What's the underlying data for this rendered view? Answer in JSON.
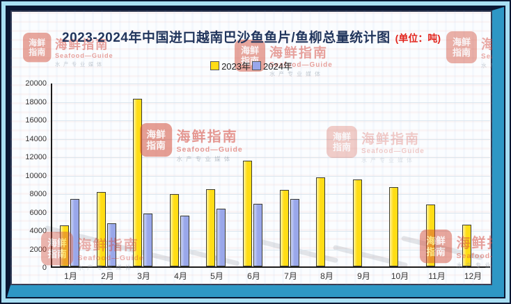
{
  "header": {
    "title": "2023-2024年中国进口越南巴沙鱼鱼片/鱼柳总量统计图",
    "unit_label": "(单位：吨)",
    "title_color": "#22355c",
    "unit_color": "#e2241c"
  },
  "legend": {
    "items": [
      {
        "label": "2023年",
        "color": "#ffdd15"
      },
      {
        "label": "2024年",
        "color": "#99a7ea"
      }
    ]
  },
  "watermark": {
    "seal_line1": "海鲜",
    "seal_line2": "指南",
    "name_cn": "海鲜指南",
    "name_en": "Seafood—Guide",
    "tagline": "水产专业媒体"
  },
  "chart_data": {
    "type": "bar",
    "title": "2023-2024年中国进口越南巴沙鱼鱼片/鱼柳总量统计图",
    "unit": "吨",
    "categories": [
      "1月",
      "2月",
      "3月",
      "4月",
      "5月",
      "6月",
      "7月",
      "8月",
      "9月",
      "10月",
      "11月",
      "12月"
    ],
    "series": [
      {
        "name": "2023年",
        "color": "#ffdd15",
        "values": [
          4450,
          8100,
          18200,
          7850,
          8350,
          11500,
          8300,
          9650,
          9400,
          8600,
          6700,
          4500
        ]
      },
      {
        "name": "2024年",
        "color": "#99a7ea",
        "values": [
          7300,
          4650,
          5700,
          5500,
          6300,
          6800,
          7350
        ]
      }
    ],
    "ylim": [
      0,
      20000
    ],
    "ytick_step": 2000,
    "grid": true,
    "legend_position": "top-center",
    "frame_colors": {
      "outer_bg": "#a9dff3",
      "navy": "#0a1633",
      "teal": "#2e97c5"
    }
  }
}
